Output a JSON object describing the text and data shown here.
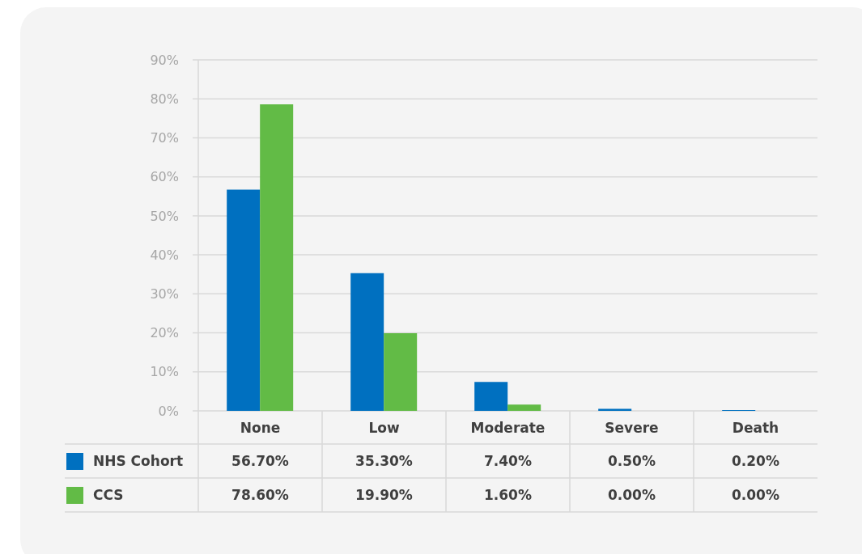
{
  "chart_data": {
    "type": "bar",
    "categories": [
      "None",
      "Low",
      "Moderate",
      "Severe",
      "Death"
    ],
    "series": [
      {
        "name": "NHS Cohort",
        "color": "#0070c0",
        "values": [
          56.7,
          35.3,
          7.4,
          0.5,
          0.2
        ],
        "value_labels": [
          "56.70%",
          "35.30%",
          "7.40%",
          "0.50%",
          "0.20%"
        ]
      },
      {
        "name": "CCS",
        "color": "#62bb46",
        "values": [
          78.6,
          19.9,
          1.6,
          0,
          0
        ],
        "value_labels": [
          "78.60%",
          "19.90%",
          "1.60%",
          "0.00%",
          "0.00%"
        ]
      }
    ],
    "ylim": [
      0,
      90
    ],
    "yticks": [
      {
        "value": 0,
        "label": "0%"
      },
      {
        "value": 10,
        "label": "10%"
      },
      {
        "value": 20,
        "label": "20%"
      },
      {
        "value": 30,
        "label": "30%"
      },
      {
        "value": 40,
        "label": "40%"
      },
      {
        "value": 50,
        "label": "50%"
      },
      {
        "value": 60,
        "label": "60%"
      },
      {
        "value": 70,
        "label": "70%"
      },
      {
        "value": 80,
        "label": "80%"
      },
      {
        "value": 90,
        "label": "90%"
      }
    ],
    "grid": "y",
    "legend": "bottom left"
  }
}
